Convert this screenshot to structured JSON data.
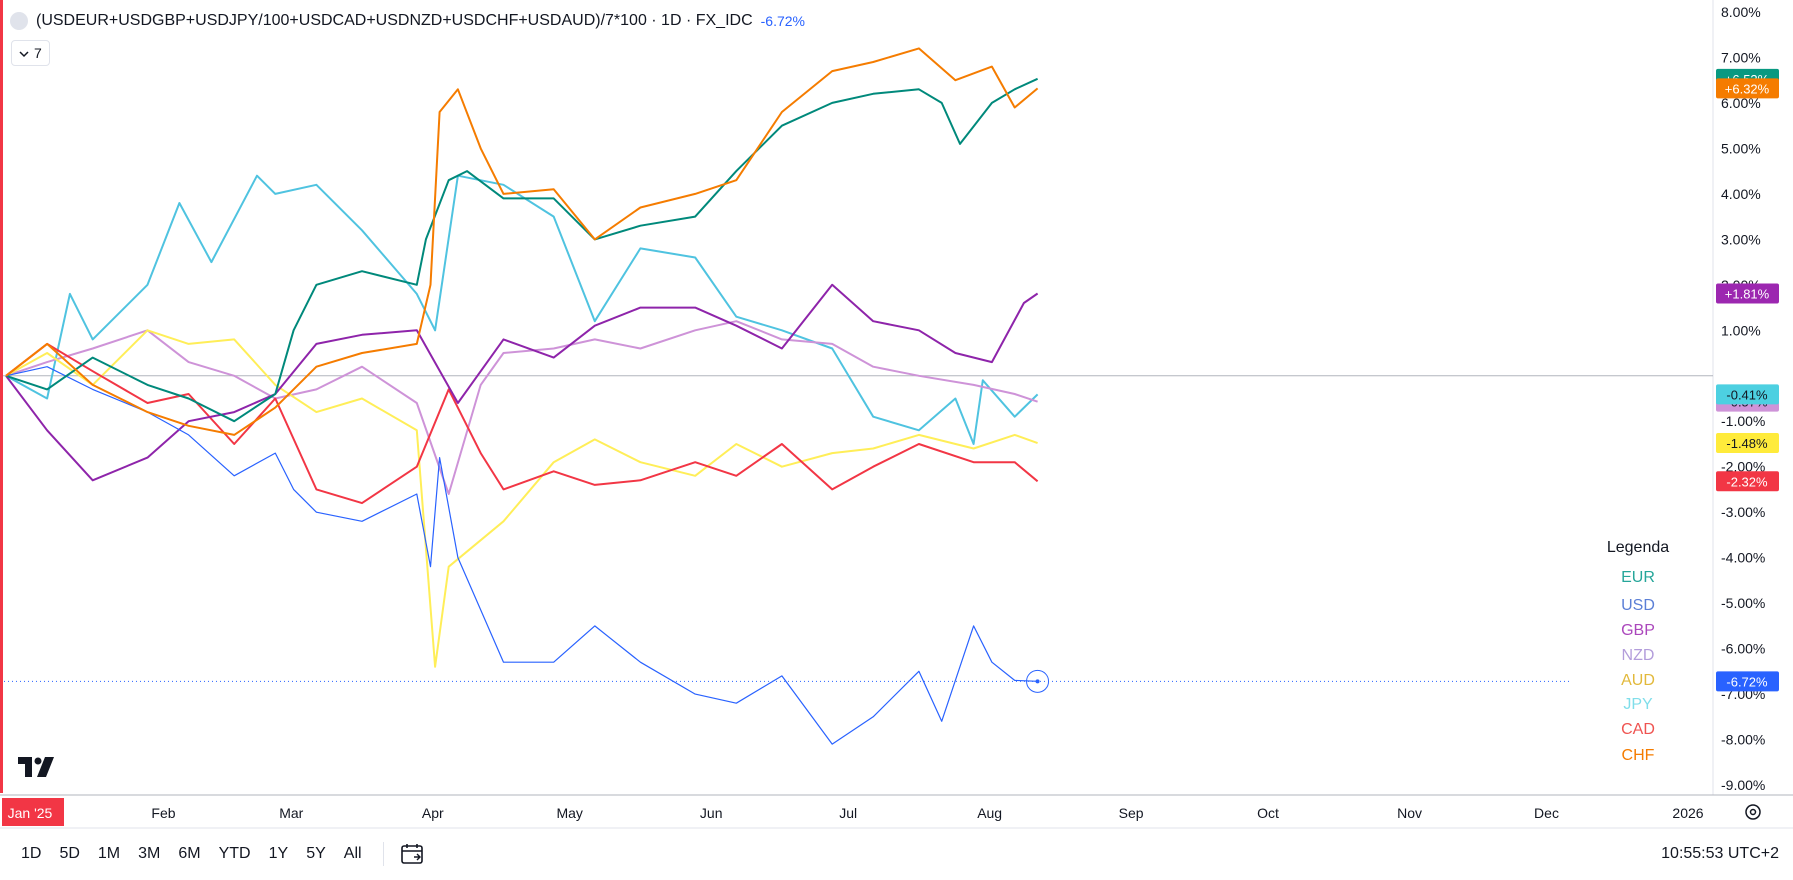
{
  "header": {
    "symbol": "(USDEUR+USDGBP+USDJPY/100+USDCAD+USDNZD+USDCHF+USDAUD)/7*100 · 1D · FX_IDC",
    "change": "-6.72%",
    "indicator_count": "7"
  },
  "toolbar": {
    "ranges": [
      "1D",
      "5D",
      "1M",
      "3M",
      "6M",
      "YTD",
      "1Y",
      "5Y",
      "All"
    ],
    "clock": "10:55:53 UTC+2"
  },
  "colors": {
    "EUR": "#089981",
    "USD": "#2962ff",
    "GBP": "#9c27b0",
    "NZD": "#ce93d8",
    "AUD": "#ffeb3b",
    "JPY": "#4dd0e1",
    "CAD": "#f23645",
    "CHF": "#f57c00",
    "EUR_line": "#00897b",
    "USD_line": "#2962ff",
    "GBP_line": "#8e24aa",
    "NZD_line": "#ce93d8",
    "AUD_line": "#ffee58",
    "JPY_line": "#4fc3e0",
    "CAD_line": "#f23645",
    "CHF_line": "#f57c00",
    "grid": "#e0e3eb",
    "axis_text": "#131722"
  },
  "chart_data": {
    "type": "line",
    "title": "(USDEUR+USDGBP+USDJPY/100+USDCAD+USDNZD+USDCHF+USDAUD)/7*100 · 1D · FX_IDC",
    "ylabel": "",
    "xlabel": "",
    "ylim": [
      -9,
      8
    ],
    "y_ticks": [
      "8.00%",
      "7.00%",
      "6.00%",
      "5.00%",
      "4.00%",
      "3.00%",
      "2.00%",
      "1.00%",
      "-1.00%",
      "-2.00%",
      "-3.00%",
      "-4.00%",
      "-5.00%",
      "-6.00%",
      "-7.00%",
      "-8.00%",
      "-9.00%"
    ],
    "x_labels": [
      "Jan '25",
      "Feb",
      "Mar",
      "Apr",
      "May",
      "Jun",
      "Jul",
      "Aug",
      "Sep",
      "Oct",
      "Nov",
      "Dec",
      "2026"
    ],
    "x_range": [
      "2025-01-01",
      "2026-01-01"
    ],
    "grid": false,
    "legend_title": "Legenda",
    "legend_position": "bottom-right",
    "series": [
      {
        "name": "EUR",
        "color": "#00897b",
        "label": "+6.53%",
        "final": 6.53,
        "points": [
          [
            "2025-01-01",
            0.0
          ],
          [
            "2025-01-10",
            -0.3
          ],
          [
            "2025-01-20",
            0.4
          ],
          [
            "2025-02-01",
            -0.2
          ],
          [
            "2025-02-10",
            -0.5
          ],
          [
            "2025-02-20",
            -1.0
          ],
          [
            "2025-03-01",
            -0.4
          ],
          [
            "2025-03-05",
            1.0
          ],
          [
            "2025-03-10",
            2.0
          ],
          [
            "2025-03-20",
            2.3
          ],
          [
            "2025-04-01",
            2.0
          ],
          [
            "2025-04-03",
            3.0
          ],
          [
            "2025-04-08",
            4.3
          ],
          [
            "2025-04-12",
            4.5
          ],
          [
            "2025-04-20",
            3.9
          ],
          [
            "2025-05-01",
            3.9
          ],
          [
            "2025-05-10",
            3.0
          ],
          [
            "2025-05-20",
            3.3
          ],
          [
            "2025-06-01",
            3.5
          ],
          [
            "2025-06-10",
            4.5
          ],
          [
            "2025-06-20",
            5.5
          ],
          [
            "2025-07-01",
            6.0
          ],
          [
            "2025-07-10",
            6.2
          ],
          [
            "2025-07-20",
            6.3
          ],
          [
            "2025-07-25",
            6.0
          ],
          [
            "2025-07-29",
            5.1
          ],
          [
            "2025-08-05",
            6.0
          ],
          [
            "2025-08-10",
            6.3
          ],
          [
            "2025-08-15",
            6.53
          ]
        ]
      },
      {
        "name": "USD",
        "color": "#2962ff",
        "label": "-6.72%",
        "final": -6.72,
        "points": [
          [
            "2025-01-01",
            0.0
          ],
          [
            "2025-01-10",
            0.2
          ],
          [
            "2025-01-20",
            -0.3
          ],
          [
            "2025-02-01",
            -0.8
          ],
          [
            "2025-02-10",
            -1.3
          ],
          [
            "2025-02-20",
            -2.2
          ],
          [
            "2025-03-01",
            -1.7
          ],
          [
            "2025-03-05",
            -2.5
          ],
          [
            "2025-03-10",
            -3.0
          ],
          [
            "2025-03-20",
            -3.2
          ],
          [
            "2025-04-01",
            -2.6
          ],
          [
            "2025-04-04",
            -4.2
          ],
          [
            "2025-04-06",
            -1.8
          ],
          [
            "2025-04-10",
            -4.0
          ],
          [
            "2025-04-20",
            -6.3
          ],
          [
            "2025-05-01",
            -6.3
          ],
          [
            "2025-05-10",
            -5.5
          ],
          [
            "2025-05-20",
            -6.3
          ],
          [
            "2025-06-01",
            -7.0
          ],
          [
            "2025-06-10",
            -7.2
          ],
          [
            "2025-06-20",
            -6.6
          ],
          [
            "2025-07-01",
            -8.1
          ],
          [
            "2025-07-10",
            -7.5
          ],
          [
            "2025-07-20",
            -6.5
          ],
          [
            "2025-07-25",
            -7.6
          ],
          [
            "2025-08-01",
            -5.5
          ],
          [
            "2025-08-05",
            -6.3
          ],
          [
            "2025-08-10",
            -6.7
          ],
          [
            "2025-08-15",
            -6.72
          ]
        ]
      },
      {
        "name": "GBP",
        "color": "#8e24aa",
        "label": "+1.81%",
        "final": 1.81,
        "points": [
          [
            "2025-01-01",
            0.0
          ],
          [
            "2025-01-10",
            -1.2
          ],
          [
            "2025-01-20",
            -2.3
          ],
          [
            "2025-02-01",
            -1.8
          ],
          [
            "2025-02-10",
            -1.0
          ],
          [
            "2025-02-20",
            -0.8
          ],
          [
            "2025-03-01",
            -0.4
          ],
          [
            "2025-03-10",
            0.7
          ],
          [
            "2025-03-20",
            0.9
          ],
          [
            "2025-04-01",
            1.0
          ],
          [
            "2025-04-10",
            -0.6
          ],
          [
            "2025-04-20",
            0.8
          ],
          [
            "2025-05-01",
            0.4
          ],
          [
            "2025-05-10",
            1.1
          ],
          [
            "2025-05-20",
            1.5
          ],
          [
            "2025-06-01",
            1.5
          ],
          [
            "2025-06-10",
            1.1
          ],
          [
            "2025-06-20",
            0.6
          ],
          [
            "2025-07-01",
            2.0
          ],
          [
            "2025-07-10",
            1.2
          ],
          [
            "2025-07-20",
            1.0
          ],
          [
            "2025-07-28",
            0.5
          ],
          [
            "2025-08-05",
            0.3
          ],
          [
            "2025-08-12",
            1.6
          ],
          [
            "2025-08-15",
            1.81
          ]
        ]
      },
      {
        "name": "NZD",
        "color": "#ce93d8",
        "label": "-0.57%",
        "final": -0.57,
        "points": [
          [
            "2025-01-01",
            0.0
          ],
          [
            "2025-01-10",
            0.3
          ],
          [
            "2025-01-20",
            0.6
          ],
          [
            "2025-02-01",
            1.0
          ],
          [
            "2025-02-10",
            0.3
          ],
          [
            "2025-02-20",
            0.0
          ],
          [
            "2025-03-01",
            -0.5
          ],
          [
            "2025-03-10",
            -0.3
          ],
          [
            "2025-03-20",
            0.2
          ],
          [
            "2025-04-01",
            -0.6
          ],
          [
            "2025-04-08",
            -2.6
          ],
          [
            "2025-04-15",
            -0.2
          ],
          [
            "2025-04-20",
            0.5
          ],
          [
            "2025-05-01",
            0.6
          ],
          [
            "2025-05-10",
            0.8
          ],
          [
            "2025-05-20",
            0.6
          ],
          [
            "2025-06-01",
            1.0
          ],
          [
            "2025-06-10",
            1.2
          ],
          [
            "2025-06-20",
            0.8
          ],
          [
            "2025-07-01",
            0.7
          ],
          [
            "2025-07-10",
            0.2
          ],
          [
            "2025-07-20",
            0.0
          ],
          [
            "2025-08-01",
            -0.2
          ],
          [
            "2025-08-10",
            -0.4
          ],
          [
            "2025-08-15",
            -0.57
          ]
        ]
      },
      {
        "name": "AUD",
        "color": "#ffee58",
        "label": "-1.48%",
        "final": -1.48,
        "points": [
          [
            "2025-01-01",
            0.0
          ],
          [
            "2025-01-10",
            0.5
          ],
          [
            "2025-01-20",
            -0.2
          ],
          [
            "2025-02-01",
            1.0
          ],
          [
            "2025-02-10",
            0.7
          ],
          [
            "2025-02-20",
            0.8
          ],
          [
            "2025-03-01",
            -0.2
          ],
          [
            "2025-03-10",
            -0.8
          ],
          [
            "2025-03-20",
            -0.5
          ],
          [
            "2025-04-01",
            -1.2
          ],
          [
            "2025-04-05",
            -6.4
          ],
          [
            "2025-04-08",
            -4.2
          ],
          [
            "2025-04-20",
            -3.2
          ],
          [
            "2025-05-01",
            -1.9
          ],
          [
            "2025-05-10",
            -1.4
          ],
          [
            "2025-05-20",
            -1.9
          ],
          [
            "2025-06-01",
            -2.2
          ],
          [
            "2025-06-10",
            -1.5
          ],
          [
            "2025-06-20",
            -2.0
          ],
          [
            "2025-07-01",
            -1.7
          ],
          [
            "2025-07-10",
            -1.6
          ],
          [
            "2025-07-20",
            -1.3
          ],
          [
            "2025-08-01",
            -1.6
          ],
          [
            "2025-08-10",
            -1.3
          ],
          [
            "2025-08-15",
            -1.48
          ]
        ]
      },
      {
        "name": "JPY",
        "color": "#4fc3e0",
        "label": "-0.41%",
        "final": -0.41,
        "points": [
          [
            "2025-01-01",
            0.0
          ],
          [
            "2025-01-10",
            -0.5
          ],
          [
            "2025-01-15",
            1.8
          ],
          [
            "2025-01-20",
            0.8
          ],
          [
            "2025-02-01",
            2.0
          ],
          [
            "2025-02-08",
            3.8
          ],
          [
            "2025-02-15",
            2.5
          ],
          [
            "2025-02-25",
            4.4
          ],
          [
            "2025-03-01",
            4.0
          ],
          [
            "2025-03-10",
            4.2
          ],
          [
            "2025-03-20",
            3.2
          ],
          [
            "2025-04-01",
            1.8
          ],
          [
            "2025-04-05",
            1.0
          ],
          [
            "2025-04-10",
            4.4
          ],
          [
            "2025-04-20",
            4.2
          ],
          [
            "2025-05-01",
            3.5
          ],
          [
            "2025-05-10",
            1.2
          ],
          [
            "2025-05-20",
            2.8
          ],
          [
            "2025-06-01",
            2.6
          ],
          [
            "2025-06-10",
            1.3
          ],
          [
            "2025-06-20",
            1.0
          ],
          [
            "2025-07-01",
            0.6
          ],
          [
            "2025-07-10",
            -0.9
          ],
          [
            "2025-07-20",
            -1.2
          ],
          [
            "2025-07-28",
            -0.5
          ],
          [
            "2025-08-01",
            -1.5
          ],
          [
            "2025-08-03",
            -0.1
          ],
          [
            "2025-08-10",
            -0.9
          ],
          [
            "2025-08-15",
            -0.41
          ]
        ]
      },
      {
        "name": "CAD",
        "color": "#f23645",
        "label": "-2.32%",
        "final": -2.32,
        "points": [
          [
            "2025-01-01",
            0.0
          ],
          [
            "2025-01-10",
            0.7
          ],
          [
            "2025-01-20",
            0.1
          ],
          [
            "2025-02-01",
            -0.6
          ],
          [
            "2025-02-10",
            -0.4
          ],
          [
            "2025-02-20",
            -1.5
          ],
          [
            "2025-03-01",
            -0.5
          ],
          [
            "2025-03-10",
            -2.5
          ],
          [
            "2025-03-20",
            -2.8
          ],
          [
            "2025-04-01",
            -2.0
          ],
          [
            "2025-04-08",
            -0.3
          ],
          [
            "2025-04-15",
            -1.7
          ],
          [
            "2025-04-20",
            -2.5
          ],
          [
            "2025-05-01",
            -2.1
          ],
          [
            "2025-05-10",
            -2.4
          ],
          [
            "2025-05-20",
            -2.3
          ],
          [
            "2025-06-01",
            -1.9
          ],
          [
            "2025-06-10",
            -2.2
          ],
          [
            "2025-06-20",
            -1.5
          ],
          [
            "2025-07-01",
            -2.5
          ],
          [
            "2025-07-10",
            -2.0
          ],
          [
            "2025-07-20",
            -1.5
          ],
          [
            "2025-08-01",
            -1.9
          ],
          [
            "2025-08-10",
            -1.9
          ],
          [
            "2025-08-15",
            -2.32
          ]
        ]
      },
      {
        "name": "CHF",
        "color": "#f57c00",
        "label": "+6.32%",
        "final": 6.32,
        "points": [
          [
            "2025-01-01",
            0.0
          ],
          [
            "2025-01-10",
            0.7
          ],
          [
            "2025-01-20",
            -0.2
          ],
          [
            "2025-02-01",
            -0.8
          ],
          [
            "2025-02-10",
            -1.1
          ],
          [
            "2025-02-20",
            -1.3
          ],
          [
            "2025-03-01",
            -0.7
          ],
          [
            "2025-03-10",
            0.2
          ],
          [
            "2025-03-20",
            0.5
          ],
          [
            "2025-04-01",
            0.7
          ],
          [
            "2025-04-04",
            2.0
          ],
          [
            "2025-04-06",
            5.8
          ],
          [
            "2025-04-10",
            6.3
          ],
          [
            "2025-04-15",
            5.0
          ],
          [
            "2025-04-20",
            4.0
          ],
          [
            "2025-05-01",
            4.1
          ],
          [
            "2025-05-10",
            3.0
          ],
          [
            "2025-05-20",
            3.7
          ],
          [
            "2025-06-01",
            4.0
          ],
          [
            "2025-06-10",
            4.3
          ],
          [
            "2025-06-20",
            5.8
          ],
          [
            "2025-07-01",
            6.7
          ],
          [
            "2025-07-10",
            6.9
          ],
          [
            "2025-07-20",
            7.2
          ],
          [
            "2025-07-28",
            6.5
          ],
          [
            "2025-08-05",
            6.8
          ],
          [
            "2025-08-10",
            5.9
          ],
          [
            "2025-08-15",
            6.32
          ]
        ]
      }
    ]
  }
}
